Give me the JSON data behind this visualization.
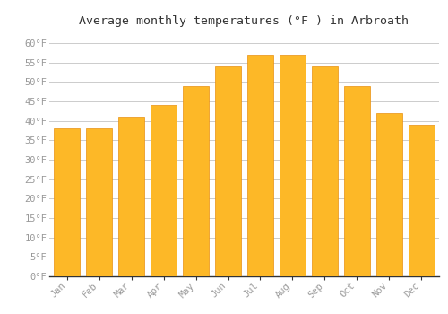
{
  "title": "Average monthly temperatures (°F ) in Arbroath",
  "months": [
    "Jan",
    "Feb",
    "Mar",
    "Apr",
    "May",
    "Jun",
    "Jul",
    "Aug",
    "Sep",
    "Oct",
    "Nov",
    "Dec"
  ],
  "values": [
    38,
    38,
    41,
    44,
    49,
    54,
    57,
    57,
    54,
    49,
    42,
    39
  ],
  "bar_color_main": "#FDB827",
  "background_color": "#FFFFFF",
  "grid_color": "#CCCCCC",
  "title_fontsize": 9.5,
  "tick_fontsize": 7.5,
  "ylim": [
    0,
    63
  ],
  "yticks": [
    0,
    5,
    10,
    15,
    20,
    25,
    30,
    35,
    40,
    45,
    50,
    55,
    60
  ],
  "ytick_labels": [
    "0°F",
    "5°F",
    "10°F",
    "15°F",
    "20°F",
    "25°F",
    "30°F",
    "35°F",
    "40°F",
    "45°F",
    "50°F",
    "55°F",
    "60°F"
  ],
  "tick_color": "#999999",
  "spine_color": "#333333"
}
